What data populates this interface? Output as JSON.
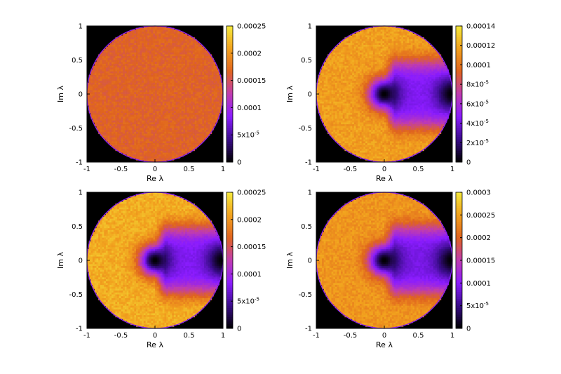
{
  "palette": {
    "background": "#ffffff",
    "plot_background": "#000000",
    "colormap": [
      "#000000",
      "#3a0c8a",
      "#8a1cff",
      "#c03cb0",
      "#e0641e",
      "#f2a21e",
      "#f5ea3c"
    ]
  },
  "chart_data": [
    {
      "type": "heatmap",
      "title": "",
      "xlabel": "Re λ",
      "ylabel": "Im λ",
      "xlim": [
        -1,
        1
      ],
      "ylim": [
        -1,
        1
      ],
      "x_ticks": [
        "-1",
        "-0.5",
        "0",
        "0.5",
        "1"
      ],
      "y_ticks": [
        "-1",
        "-0.5",
        "0",
        "0.5",
        "1"
      ],
      "grid": false,
      "domain": "unit disk",
      "colorbar": {
        "range": [
          0,
          0.00025
        ],
        "ticks": [
          {
            "value": 0,
            "label": "0"
          },
          {
            "value": 5e-05,
            "label": "5x10-5"
          },
          {
            "value": 0.0001,
            "label": "0.0001"
          },
          {
            "value": 0.00015,
            "label": "0.00015"
          },
          {
            "value": 0.0002,
            "label": "0.0002"
          },
          {
            "value": 0.00025,
            "label": "0.00025"
          }
        ]
      },
      "density_profile": {
        "uniform_level": 0.000165,
        "holes": []
      }
    },
    {
      "type": "heatmap",
      "title": "",
      "xlabel": "Re λ",
      "ylabel": "Im λ",
      "xlim": [
        -1,
        1
      ],
      "ylim": [
        -1,
        1
      ],
      "x_ticks": [
        "-1",
        "-0.5",
        "0",
        "0.5",
        "1"
      ],
      "y_ticks": [
        "-1",
        "-0.5",
        "0",
        "0.5",
        "1"
      ],
      "grid": false,
      "domain": "unit disk",
      "colorbar": {
        "range": [
          0,
          0.00014
        ],
        "ticks": [
          {
            "value": 0,
            "label": "0"
          },
          {
            "value": 2e-05,
            "label": "2x10-5"
          },
          {
            "value": 4e-05,
            "label": "4x10-5"
          },
          {
            "value": 6e-05,
            "label": "6x10-5"
          },
          {
            "value": 8e-05,
            "label": "8x10-5"
          },
          {
            "value": 0.0001,
            "label": "0.0001"
          },
          {
            "value": 0.00012,
            "label": "0.00012"
          },
          {
            "value": 0.00014,
            "label": "0.00014"
          }
        ]
      },
      "density_profile": {
        "outer_level": 0.000115,
        "holes": [
          {
            "center": [
              0,
              0
            ],
            "level": 0
          },
          {
            "center": [
              1,
              0
            ],
            "level": 0
          }
        ],
        "channel_level": 4.5e-05
      }
    },
    {
      "type": "heatmap",
      "title": "",
      "xlabel": "Re λ",
      "ylabel": "Im λ",
      "xlim": [
        -1,
        1
      ],
      "ylim": [
        -1,
        1
      ],
      "x_ticks": [
        "-1",
        "-0.5",
        "0",
        "0.5",
        "1"
      ],
      "y_ticks": [
        "-1",
        "-0.5",
        "0",
        "0.5",
        "1"
      ],
      "grid": false,
      "domain": "unit disk",
      "colorbar": {
        "range": [
          0,
          0.00025
        ],
        "ticks": [
          {
            "value": 0,
            "label": "0"
          },
          {
            "value": 5e-05,
            "label": "5x10-5"
          },
          {
            "value": 0.0001,
            "label": "0.0001"
          },
          {
            "value": 0.00015,
            "label": "0.00015"
          },
          {
            "value": 0.0002,
            "label": "0.0002"
          },
          {
            "value": 0.00025,
            "label": "0.00025"
          }
        ]
      },
      "density_profile": {
        "outer_level": 0.000215,
        "holes": [
          {
            "center": [
              0,
              0
            ],
            "level": 0
          },
          {
            "center": [
              1,
              0
            ],
            "level": 0
          }
        ],
        "channel_level": 8e-05
      }
    },
    {
      "type": "heatmap",
      "title": "",
      "xlabel": "Re λ",
      "ylabel": "Im λ",
      "xlim": [
        -1,
        1
      ],
      "ylim": [
        -1,
        1
      ],
      "x_ticks": [
        "-1",
        "-0.5",
        "0",
        "0.5",
        "1"
      ],
      "y_ticks": [
        "-1",
        "-0.5",
        "0",
        "0.5",
        "1"
      ],
      "grid": false,
      "domain": "unit disk",
      "colorbar": {
        "range": [
          0,
          0.0003
        ],
        "ticks": [
          {
            "value": 0,
            "label": "0"
          },
          {
            "value": 5e-05,
            "label": "5x10-5"
          },
          {
            "value": 0.0001,
            "label": "0.0001"
          },
          {
            "value": 0.00015,
            "label": "0.00015"
          },
          {
            "value": 0.0002,
            "label": "0.0002"
          },
          {
            "value": 0.00025,
            "label": "0.00025"
          },
          {
            "value": 0.0003,
            "label": "0.0003"
          }
        ]
      },
      "density_profile": {
        "outer_level": 0.00024,
        "holes": [
          {
            "center": [
              0,
              0
            ],
            "level": 0
          },
          {
            "center": [
              1,
              0
            ],
            "level": 0
          }
        ],
        "channel_level": 9e-05
      }
    }
  ]
}
